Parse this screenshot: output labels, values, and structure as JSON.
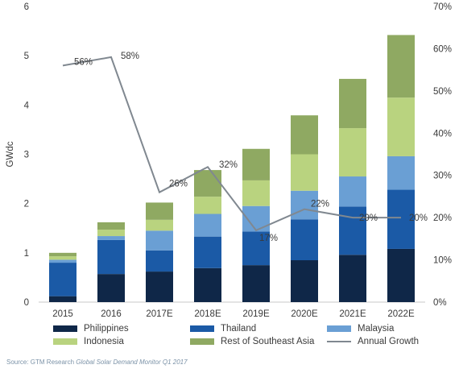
{
  "chart_data": {
    "type": "bar",
    "stacked": true,
    "categories": [
      "2015",
      "2016",
      "2017E",
      "2018E",
      "2019E",
      "2020E",
      "2021E",
      "2022E"
    ],
    "series": [
      {
        "name": "Philippines",
        "color": "#0f2748",
        "values": [
          0.12,
          0.57,
          0.62,
          0.69,
          0.75,
          0.85,
          0.96,
          1.08
        ]
      },
      {
        "name": "Thailand",
        "color": "#1b5aa6",
        "values": [
          0.68,
          0.69,
          0.43,
          0.64,
          0.68,
          0.83,
          0.98,
          1.2
        ]
      },
      {
        "name": "Malaysia",
        "color": "#6a9fd4",
        "values": [
          0.06,
          0.08,
          0.4,
          0.46,
          0.52,
          0.58,
          0.61,
          0.68
        ]
      },
      {
        "name": "Indonesia",
        "color": "#b9d37f",
        "values": [
          0.07,
          0.13,
          0.22,
          0.35,
          0.52,
          0.74,
          0.98,
          1.19
        ]
      },
      {
        "name": "Rest of Southeast Asia",
        "color": "#8fa962",
        "values": [
          0.07,
          0.15,
          0.35,
          0.54,
          0.64,
          0.79,
          1.0,
          1.27
        ]
      }
    ],
    "line_series": {
      "name": "Annual Growth",
      "color": "#808890",
      "values": [
        56,
        58,
        26,
        32,
        17,
        22,
        20,
        20
      ],
      "labels": [
        "56%",
        "58%",
        "26%",
        "32%",
        "17%",
        "22%",
        "20%",
        "20%"
      ]
    },
    "ylabel": "GWdc",
    "ylim": [
      0,
      6
    ],
    "yticks": [
      0,
      1,
      2,
      3,
      4,
      5,
      6
    ],
    "y2lim": [
      0,
      70
    ],
    "y2ticks": [
      "0%",
      "10%",
      "20%",
      "30%",
      "40%",
      "50%",
      "60%",
      "70%"
    ],
    "grid": false,
    "legend_position": "bottom"
  },
  "legend": {
    "items": [
      {
        "label": "Philippines",
        "color": "#0f2748",
        "kind": "bar"
      },
      {
        "label": "Thailand",
        "color": "#1b5aa6",
        "kind": "bar"
      },
      {
        "label": "Malaysia",
        "color": "#6a9fd4",
        "kind": "bar"
      },
      {
        "label": "Indonesia",
        "color": "#b9d37f",
        "kind": "bar"
      },
      {
        "label": "Rest of Southeast Asia",
        "color": "#8fa962",
        "kind": "bar"
      },
      {
        "label": "Annual Growth",
        "color": "#808890",
        "kind": "line"
      }
    ]
  },
  "source": {
    "prefix": "Source: GTM Research ",
    "title": "Global Solar Demand Monitor Q1 2017"
  }
}
